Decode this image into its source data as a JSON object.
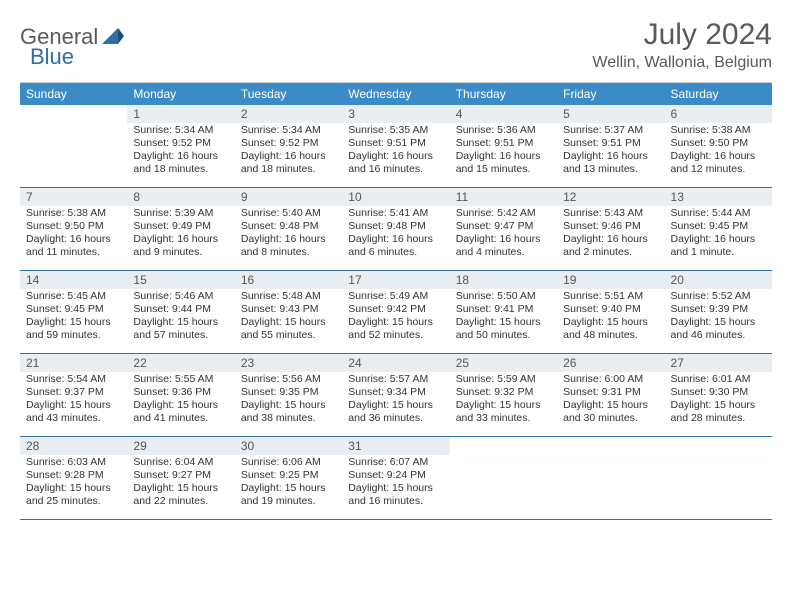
{
  "logo": {
    "text_gray": "General",
    "text_blue": "Blue"
  },
  "title": "July 2024",
  "location": "Wellin, Wallonia, Belgium",
  "colors": {
    "header_bg": "#3b8bc6",
    "header_text": "#ffffff",
    "daynum_bg": "#e9eef2",
    "week_border": "#3072a6",
    "text": "#333333"
  },
  "dayNames": [
    "Sunday",
    "Monday",
    "Tuesday",
    "Wednesday",
    "Thursday",
    "Friday",
    "Saturday"
  ],
  "weeks": [
    [
      {
        "n": "",
        "sr": "",
        "ss": "",
        "dl": ""
      },
      {
        "n": "1",
        "sr": "Sunrise: 5:34 AM",
        "ss": "Sunset: 9:52 PM",
        "dl": "Daylight: 16 hours and 18 minutes."
      },
      {
        "n": "2",
        "sr": "Sunrise: 5:34 AM",
        "ss": "Sunset: 9:52 PM",
        "dl": "Daylight: 16 hours and 18 minutes."
      },
      {
        "n": "3",
        "sr": "Sunrise: 5:35 AM",
        "ss": "Sunset: 9:51 PM",
        "dl": "Daylight: 16 hours and 16 minutes."
      },
      {
        "n": "4",
        "sr": "Sunrise: 5:36 AM",
        "ss": "Sunset: 9:51 PM",
        "dl": "Daylight: 16 hours and 15 minutes."
      },
      {
        "n": "5",
        "sr": "Sunrise: 5:37 AM",
        "ss": "Sunset: 9:51 PM",
        "dl": "Daylight: 16 hours and 13 minutes."
      },
      {
        "n": "6",
        "sr": "Sunrise: 5:38 AM",
        "ss": "Sunset: 9:50 PM",
        "dl": "Daylight: 16 hours and 12 minutes."
      }
    ],
    [
      {
        "n": "7",
        "sr": "Sunrise: 5:38 AM",
        "ss": "Sunset: 9:50 PM",
        "dl": "Daylight: 16 hours and 11 minutes."
      },
      {
        "n": "8",
        "sr": "Sunrise: 5:39 AM",
        "ss": "Sunset: 9:49 PM",
        "dl": "Daylight: 16 hours and 9 minutes."
      },
      {
        "n": "9",
        "sr": "Sunrise: 5:40 AM",
        "ss": "Sunset: 9:48 PM",
        "dl": "Daylight: 16 hours and 8 minutes."
      },
      {
        "n": "10",
        "sr": "Sunrise: 5:41 AM",
        "ss": "Sunset: 9:48 PM",
        "dl": "Daylight: 16 hours and 6 minutes."
      },
      {
        "n": "11",
        "sr": "Sunrise: 5:42 AM",
        "ss": "Sunset: 9:47 PM",
        "dl": "Daylight: 16 hours and 4 minutes."
      },
      {
        "n": "12",
        "sr": "Sunrise: 5:43 AM",
        "ss": "Sunset: 9:46 PM",
        "dl": "Daylight: 16 hours and 2 minutes."
      },
      {
        "n": "13",
        "sr": "Sunrise: 5:44 AM",
        "ss": "Sunset: 9:45 PM",
        "dl": "Daylight: 16 hours and 1 minute."
      }
    ],
    [
      {
        "n": "14",
        "sr": "Sunrise: 5:45 AM",
        "ss": "Sunset: 9:45 PM",
        "dl": "Daylight: 15 hours and 59 minutes."
      },
      {
        "n": "15",
        "sr": "Sunrise: 5:46 AM",
        "ss": "Sunset: 9:44 PM",
        "dl": "Daylight: 15 hours and 57 minutes."
      },
      {
        "n": "16",
        "sr": "Sunrise: 5:48 AM",
        "ss": "Sunset: 9:43 PM",
        "dl": "Daylight: 15 hours and 55 minutes."
      },
      {
        "n": "17",
        "sr": "Sunrise: 5:49 AM",
        "ss": "Sunset: 9:42 PM",
        "dl": "Daylight: 15 hours and 52 minutes."
      },
      {
        "n": "18",
        "sr": "Sunrise: 5:50 AM",
        "ss": "Sunset: 9:41 PM",
        "dl": "Daylight: 15 hours and 50 minutes."
      },
      {
        "n": "19",
        "sr": "Sunrise: 5:51 AM",
        "ss": "Sunset: 9:40 PM",
        "dl": "Daylight: 15 hours and 48 minutes."
      },
      {
        "n": "20",
        "sr": "Sunrise: 5:52 AM",
        "ss": "Sunset: 9:39 PM",
        "dl": "Daylight: 15 hours and 46 minutes."
      }
    ],
    [
      {
        "n": "21",
        "sr": "Sunrise: 5:54 AM",
        "ss": "Sunset: 9:37 PM",
        "dl": "Daylight: 15 hours and 43 minutes."
      },
      {
        "n": "22",
        "sr": "Sunrise: 5:55 AM",
        "ss": "Sunset: 9:36 PM",
        "dl": "Daylight: 15 hours and 41 minutes."
      },
      {
        "n": "23",
        "sr": "Sunrise: 5:56 AM",
        "ss": "Sunset: 9:35 PM",
        "dl": "Daylight: 15 hours and 38 minutes."
      },
      {
        "n": "24",
        "sr": "Sunrise: 5:57 AM",
        "ss": "Sunset: 9:34 PM",
        "dl": "Daylight: 15 hours and 36 minutes."
      },
      {
        "n": "25",
        "sr": "Sunrise: 5:59 AM",
        "ss": "Sunset: 9:32 PM",
        "dl": "Daylight: 15 hours and 33 minutes."
      },
      {
        "n": "26",
        "sr": "Sunrise: 6:00 AM",
        "ss": "Sunset: 9:31 PM",
        "dl": "Daylight: 15 hours and 30 minutes."
      },
      {
        "n": "27",
        "sr": "Sunrise: 6:01 AM",
        "ss": "Sunset: 9:30 PM",
        "dl": "Daylight: 15 hours and 28 minutes."
      }
    ],
    [
      {
        "n": "28",
        "sr": "Sunrise: 6:03 AM",
        "ss": "Sunset: 9:28 PM",
        "dl": "Daylight: 15 hours and 25 minutes."
      },
      {
        "n": "29",
        "sr": "Sunrise: 6:04 AM",
        "ss": "Sunset: 9:27 PM",
        "dl": "Daylight: 15 hours and 22 minutes."
      },
      {
        "n": "30",
        "sr": "Sunrise: 6:06 AM",
        "ss": "Sunset: 9:25 PM",
        "dl": "Daylight: 15 hours and 19 minutes."
      },
      {
        "n": "31",
        "sr": "Sunrise: 6:07 AM",
        "ss": "Sunset: 9:24 PM",
        "dl": "Daylight: 15 hours and 16 minutes."
      },
      {
        "n": "",
        "sr": "",
        "ss": "",
        "dl": ""
      },
      {
        "n": "",
        "sr": "",
        "ss": "",
        "dl": ""
      },
      {
        "n": "",
        "sr": "",
        "ss": "",
        "dl": ""
      }
    ]
  ]
}
